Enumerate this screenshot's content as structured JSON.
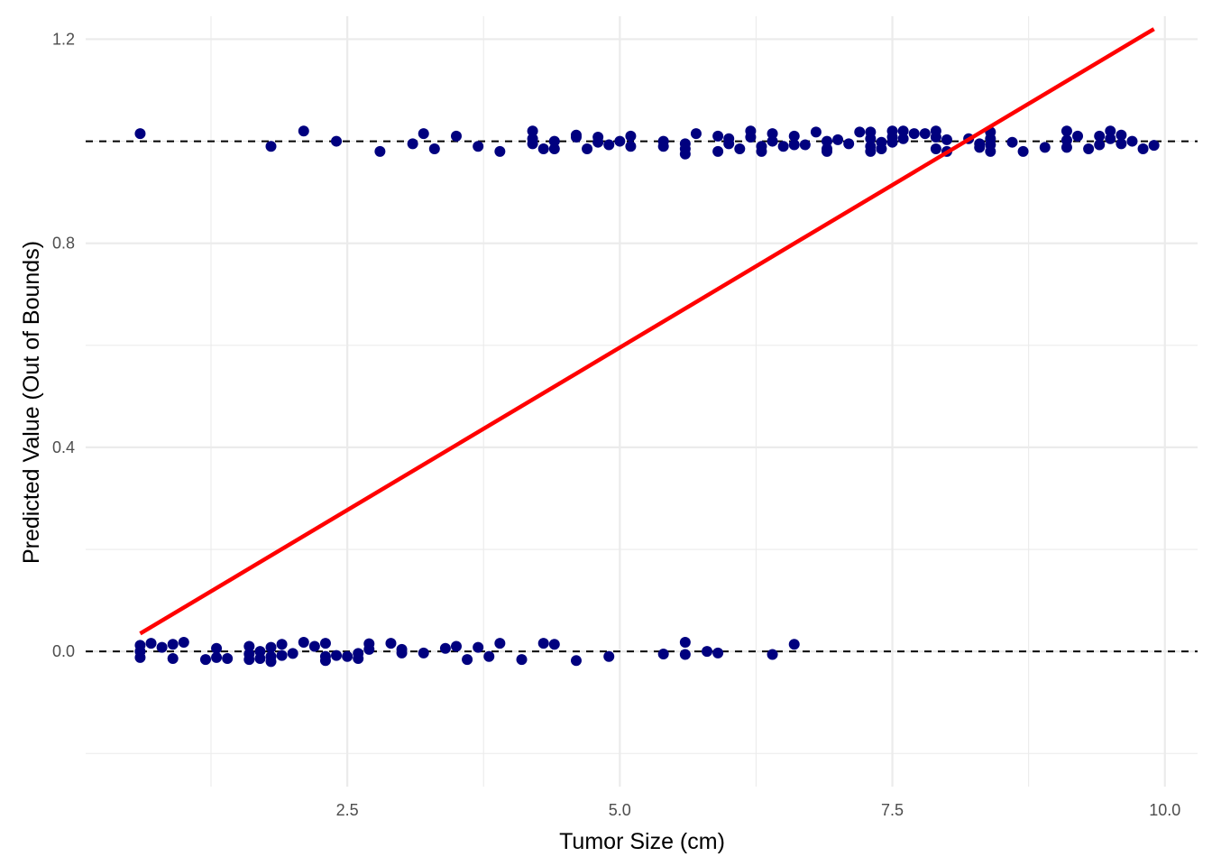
{
  "chart_data": {
    "type": "scatter",
    "title": "",
    "xlabel": "Tumor Size (cm)",
    "ylabel": "Predicted Value (Out of Bounds)",
    "xlim": [
      0.1,
      10.3
    ],
    "ylim": [
      -0.265,
      1.245
    ],
    "x_ticks": [
      2.5,
      5.0,
      7.5,
      10.0
    ],
    "x_tick_labels": [
      "2.5",
      "5.0",
      "7.5",
      "10.0"
    ],
    "y_ticks": [
      0.0,
      0.4,
      0.8,
      1.2
    ],
    "y_tick_labels": [
      "0.0",
      "0.4",
      "0.8",
      "1.2"
    ],
    "grid": true,
    "legend": "none",
    "colors": {
      "points": "#00007f",
      "fit_line": "#ff0000",
      "reference_lines": "#000000",
      "grid": "#ebebeb"
    },
    "reference_lines": [
      0,
      1
    ],
    "fit_line": {
      "x": [
        0.6,
        9.9
      ],
      "y": [
        0.035,
        1.22
      ]
    },
    "series": [
      {
        "points": [
          [
            0.6,
            1.015
          ],
          [
            1.8,
            0.99
          ],
          [
            2.1,
            1.02
          ],
          [
            2.4,
            1.0
          ],
          [
            2.8,
            0.98
          ],
          [
            3.1,
            0.995
          ],
          [
            3.2,
            1.015
          ],
          [
            3.3,
            0.985
          ],
          [
            3.5,
            1.01
          ],
          [
            3.7,
            0.99
          ],
          [
            3.9,
            0.98
          ],
          [
            4.2,
            1.02
          ],
          [
            4.2,
            1.005
          ],
          [
            4.2,
            0.995
          ],
          [
            4.3,
            0.985
          ],
          [
            4.4,
            1.0
          ],
          [
            4.4,
            0.985
          ],
          [
            4.6,
            1.012
          ],
          [
            4.6,
            1.008
          ],
          [
            4.7,
            0.985
          ],
          [
            4.8,
            1.008
          ],
          [
            4.8,
            0.998
          ],
          [
            4.9,
            0.993
          ],
          [
            5.0,
            1.0
          ],
          [
            5.1,
            1.01
          ],
          [
            5.1,
            0.99
          ],
          [
            5.4,
            1.0
          ],
          [
            5.4,
            0.99
          ],
          [
            5.6,
            0.995
          ],
          [
            5.6,
            0.985
          ],
          [
            5.6,
            0.975
          ],
          [
            5.7,
            1.015
          ],
          [
            5.9,
            1.01
          ],
          [
            5.9,
            0.98
          ],
          [
            6.0,
            1.005
          ],
          [
            6.0,
            0.995
          ],
          [
            6.1,
            0.985
          ],
          [
            6.2,
            1.02
          ],
          [
            6.2,
            1.008
          ],
          [
            6.3,
            0.99
          ],
          [
            6.3,
            0.98
          ],
          [
            6.4,
            1.015
          ],
          [
            6.4,
            1.0
          ],
          [
            6.5,
            0.99
          ],
          [
            6.6,
            1.01
          ],
          [
            6.6,
            0.993
          ],
          [
            6.7,
            0.993
          ],
          [
            6.8,
            1.018
          ],
          [
            6.9,
            1.0
          ],
          [
            6.9,
            0.985
          ],
          [
            6.9,
            0.98
          ],
          [
            7.0,
            1.003
          ],
          [
            7.1,
            0.995
          ],
          [
            7.2,
            1.018
          ],
          [
            7.3,
            1.018
          ],
          [
            7.3,
            1.005
          ],
          [
            7.3,
            0.99
          ],
          [
            7.3,
            0.98
          ],
          [
            7.4,
            0.998
          ],
          [
            7.4,
            0.985
          ],
          [
            7.5,
            1.02
          ],
          [
            7.5,
            1.008
          ],
          [
            7.5,
            0.998
          ],
          [
            7.6,
            1.02
          ],
          [
            7.6,
            1.005
          ],
          [
            7.7,
            1.015
          ],
          [
            7.8,
            1.015
          ],
          [
            7.9,
            1.02
          ],
          [
            7.9,
            1.008
          ],
          [
            7.9,
            0.985
          ],
          [
            8.0,
            1.003
          ],
          [
            8.0,
            0.98
          ],
          [
            8.2,
            1.005
          ],
          [
            8.3,
            0.995
          ],
          [
            8.3,
            0.988
          ],
          [
            8.4,
            1.018
          ],
          [
            8.4,
            1.005
          ],
          [
            8.4,
            0.993
          ],
          [
            8.4,
            0.98
          ],
          [
            8.6,
            0.998
          ],
          [
            8.7,
            0.98
          ],
          [
            8.9,
            0.988
          ],
          [
            9.1,
            1.02
          ],
          [
            9.1,
            1.002
          ],
          [
            9.1,
            0.988
          ],
          [
            9.2,
            1.01
          ],
          [
            9.3,
            0.985
          ],
          [
            9.4,
            1.01
          ],
          [
            9.4,
            0.993
          ],
          [
            9.5,
            1.02
          ],
          [
            9.5,
            1.005
          ],
          [
            9.6,
            1.012
          ],
          [
            9.6,
            0.995
          ],
          [
            9.7,
            1.0
          ],
          [
            9.8,
            0.985
          ],
          [
            9.9,
            0.992
          ],
          [
            0.6,
            0.012
          ],
          [
            0.6,
            0.0
          ],
          [
            0.6,
            -0.012
          ],
          [
            0.7,
            0.016
          ],
          [
            0.8,
            0.008
          ],
          [
            0.9,
            0.014
          ],
          [
            0.9,
            -0.014
          ],
          [
            1.0,
            0.018
          ],
          [
            1.2,
            -0.016
          ],
          [
            1.3,
            0.006
          ],
          [
            1.3,
            -0.012
          ],
          [
            1.4,
            -0.014
          ],
          [
            1.6,
            0.01
          ],
          [
            1.6,
            -0.005
          ],
          [
            1.6,
            -0.016
          ],
          [
            1.7,
            0.0
          ],
          [
            1.7,
            -0.014
          ],
          [
            1.8,
            0.008
          ],
          [
            1.8,
            -0.01
          ],
          [
            1.8,
            -0.02
          ],
          [
            1.9,
            0.014
          ],
          [
            1.9,
            -0.008
          ],
          [
            2.0,
            -0.004
          ],
          [
            2.1,
            0.018
          ],
          [
            2.2,
            0.01
          ],
          [
            2.3,
            0.016
          ],
          [
            2.3,
            -0.01
          ],
          [
            2.3,
            -0.018
          ],
          [
            2.4,
            -0.008
          ],
          [
            2.5,
            -0.01
          ],
          [
            2.6,
            -0.004
          ],
          [
            2.6,
            -0.014
          ],
          [
            2.7,
            0.015
          ],
          [
            2.7,
            0.004
          ],
          [
            2.9,
            0.016
          ],
          [
            3.0,
            0.004
          ],
          [
            3.0,
            -0.003
          ],
          [
            3.2,
            -0.003
          ],
          [
            3.4,
            0.006
          ],
          [
            3.5,
            0.01
          ],
          [
            3.6,
            -0.016
          ],
          [
            3.7,
            0.008
          ],
          [
            3.8,
            -0.01
          ],
          [
            3.9,
            0.016
          ],
          [
            4.1,
            -0.016
          ],
          [
            4.3,
            0.016
          ],
          [
            4.4,
            0.014
          ],
          [
            4.6,
            -0.018
          ],
          [
            4.9,
            -0.01
          ],
          [
            5.4,
            -0.005
          ],
          [
            5.6,
            0.018
          ],
          [
            5.6,
            -0.006
          ],
          [
            5.8,
            0.0
          ],
          [
            5.9,
            -0.003
          ],
          [
            6.4,
            -0.006
          ],
          [
            6.6,
            0.014
          ]
        ]
      }
    ]
  }
}
